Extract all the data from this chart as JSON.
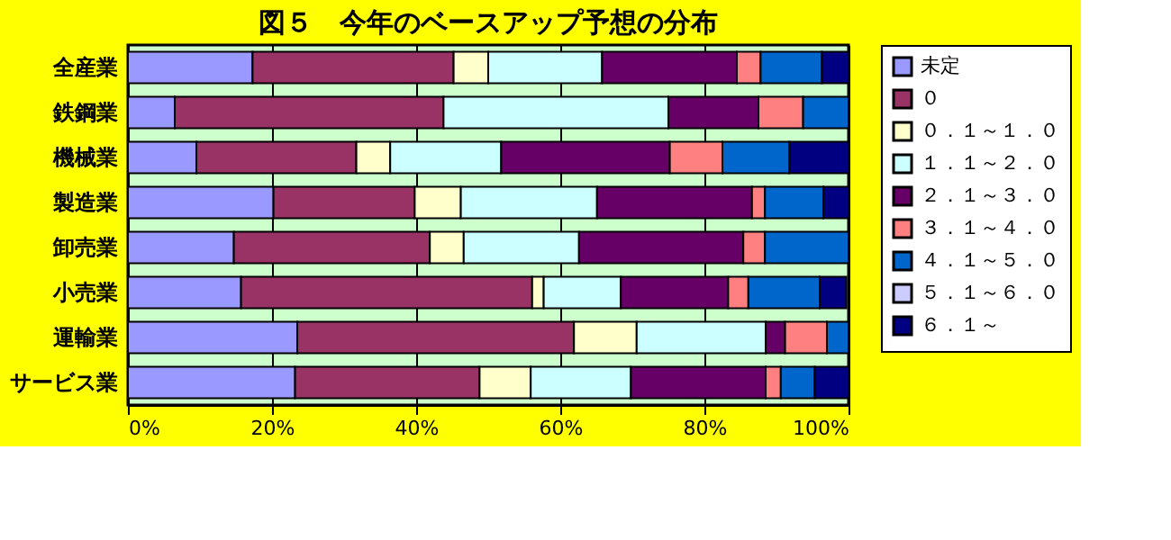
{
  "chart_data": {
    "type": "bar",
    "orientation": "horizontal",
    "stacked": true,
    "title": "図５　今年のベースアップ予想の分布",
    "categories": [
      "全産業",
      "鉄鋼業",
      "機械業",
      "製造業",
      "卸売業",
      "小売業",
      "運輸業",
      "サービス業"
    ],
    "series": [
      {
        "name": "未定",
        "color": "#9999ff",
        "values": [
          17.3,
          6.5,
          9.5,
          20.2,
          14.7,
          15.7,
          23.5,
          23.2
        ]
      },
      {
        "name": "０",
        "color": "#993366",
        "values": [
          27.9,
          37.3,
          22.2,
          19.6,
          27.2,
          40.4,
          38.4,
          25.6
        ]
      },
      {
        "name": "０．１～１．０",
        "color": "#ffffcc",
        "values": [
          4.8,
          0,
          4.7,
          6.4,
          4.7,
          1.6,
          8.7,
          7.1
        ]
      },
      {
        "name": "１．１～２．０",
        "color": "#ccffff",
        "values": [
          15.8,
          31.2,
          15.4,
          18.9,
          16.0,
          10.7,
          17.9,
          13.9
        ]
      },
      {
        "name": "２．１～３．０",
        "color": "#660066",
        "values": [
          18.7,
          12.5,
          23.4,
          21.5,
          22.8,
          14.9,
          2.7,
          18.7
        ]
      },
      {
        "name": "３．１～４．０",
        "color": "#ff8080",
        "values": [
          3.3,
          6.2,
          7.3,
          1.8,
          3.0,
          2.8,
          5.8,
          2.1
        ]
      },
      {
        "name": "４．１～５．０",
        "color": "#0066cc",
        "values": [
          8.5,
          6.3,
          9.3,
          8.1,
          11.6,
          9.9,
          3.0,
          4.7
        ]
      },
      {
        "name": "５．１～６．０",
        "color": "#ccccff",
        "values": [
          0,
          0,
          0,
          0,
          0,
          null,
          0,
          0
        ]
      },
      {
        "name": "６．１～",
        "color": "#000080",
        "values": [
          3.7,
          0,
          8.2,
          3.5,
          0,
          3.7,
          0,
          4.7
        ]
      }
    ],
    "xlim": [
      0,
      100
    ],
    "xticks": [
      {
        "value": 0,
        "label": "0%"
      },
      {
        "value": 20,
        "label": "20%"
      },
      {
        "value": 40,
        "label": "40%"
      },
      {
        "value": 60,
        "label": "60%"
      },
      {
        "value": 80,
        "label": "80%"
      },
      {
        "value": 100,
        "label": "100%"
      }
    ],
    "grid": "x",
    "legend": "right"
  }
}
